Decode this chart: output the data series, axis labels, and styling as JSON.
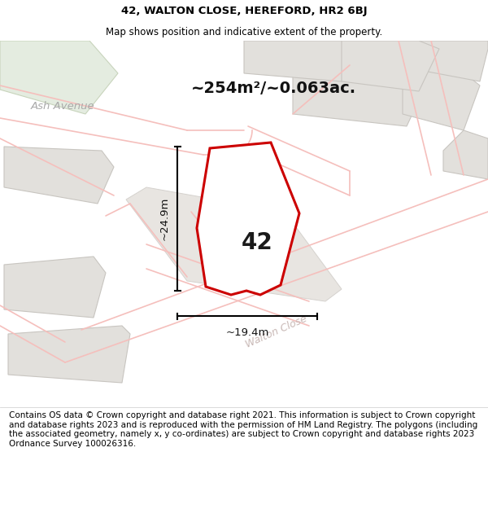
{
  "title_line1": "42, WALTON CLOSE, HEREFORD, HR2 6BJ",
  "title_line2": "Map shows position and indicative extent of the property.",
  "area_text": "~254m²/~0.063ac.",
  "property_number": "42",
  "dim_height": "~24.9m",
  "dim_width": "~19.4m",
  "street_walton": "Walton Close",
  "street_ash": "Ash Avenue",
  "footer_text": "Contains OS data © Crown copyright and database right 2021. This information is subject to Crown copyright and database rights 2023 and is reproduced with the permission of HM Land Registry. The polygons (including the associated geometry, namely x, y co-ordinates) are subject to Crown copyright and database rights 2023 Ordnance Survey 100026316.",
  "map_bg": "#f9f8f7",
  "road_pink": "#f5bfbc",
  "road_pink2": "#f0aaaa",
  "bld_fill": "#e2e0dc",
  "bld_edge": "#c8c5c0",
  "green_fill": "#e4ece0",
  "green_edge": "#c8d4bc",
  "plot_fill": "#ffffff",
  "plot_edge": "#cc0000",
  "ash_road_fill": "#eeebe7",
  "title_fs": 9.5,
  "sub_fs": 8.5,
  "area_fs": 14,
  "num_fs": 20,
  "dim_fs": 9.5,
  "foot_fs": 7.5
}
